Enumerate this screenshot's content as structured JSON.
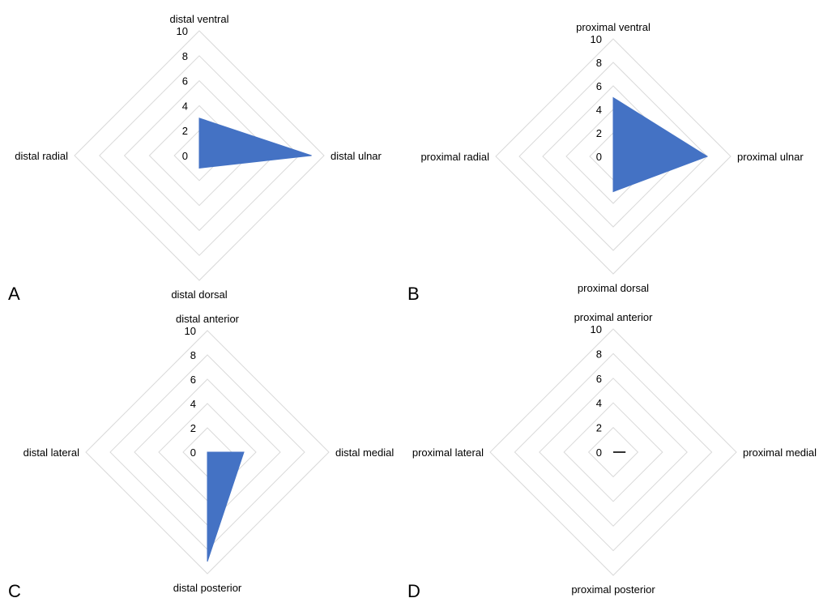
{
  "chart_data": [
    {
      "panel": "A",
      "type": "radar",
      "axes": [
        "distal ventral",
        "distal ulnar",
        "distal dorsal",
        "distal radial"
      ],
      "ticks": [
        "0",
        "2",
        "4",
        "6",
        "8",
        "10"
      ],
      "ylim": [
        0,
        10
      ],
      "grid": true,
      "series": [
        {
          "values": [
            3,
            9,
            1,
            0
          ],
          "color": "#4472c4"
        }
      ]
    },
    {
      "panel": "B",
      "type": "radar",
      "axes": [
        "proximal ventral",
        "proximal ulnar",
        "proximal dorsal",
        "proximal radial"
      ],
      "ticks": [
        "0",
        "2",
        "4",
        "6",
        "8",
        "10"
      ],
      "ylim": [
        0,
        10
      ],
      "grid": true,
      "series": [
        {
          "values": [
            5,
            8,
            3,
            0
          ],
          "color": "#4472c4"
        }
      ]
    },
    {
      "panel": "C",
      "type": "radar",
      "axes": [
        "distal anterior",
        "distal medial",
        "distal posterior",
        "distal lateral"
      ],
      "ticks": [
        "0",
        "2",
        "4",
        "6",
        "8",
        "10"
      ],
      "ylim": [
        0,
        10
      ],
      "grid": true,
      "series": [
        {
          "values": [
            0,
            3,
            9,
            0
          ],
          "color": "#4472c4"
        }
      ]
    },
    {
      "panel": "D",
      "type": "radar",
      "axes": [
        "proximal anterior",
        "proximal medial",
        "proximal posterior",
        "proximal lateral"
      ],
      "ticks": [
        "0",
        "2",
        "4",
        "6",
        "8",
        "10"
      ],
      "ylim": [
        0,
        10
      ],
      "grid": true,
      "series": [
        {
          "values": [
            0,
            1,
            0,
            0
          ],
          "color": "#333333"
        }
      ]
    }
  ]
}
